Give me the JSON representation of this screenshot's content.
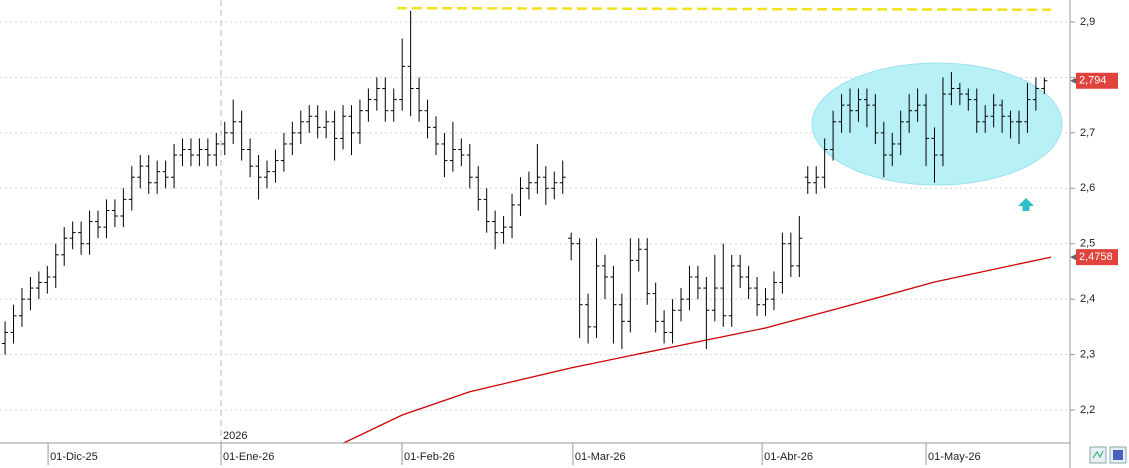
{
  "chart_data": {
    "type": "ohlc",
    "color": "#000000",
    "xlim": [
      -0.6,
      125.8
    ],
    "ylim": [
      2.1405,
      2.9397
    ],
    "yticks": [
      {
        "value": 2.2,
        "label": "2,2"
      },
      {
        "value": 2.3,
        "label": "2,3"
      },
      {
        "value": 2.4,
        "label": "2,4"
      },
      {
        "value": 2.5,
        "label": "2,5"
      },
      {
        "value": 2.6,
        "label": "2,6"
      },
      {
        "value": 2.7,
        "label": "2,7"
      },
      {
        "value": 2.8,
        "label": "2,8"
      },
      {
        "value": 2.9,
        "label": "2,9"
      }
    ],
    "xticks": [
      {
        "value": 5.09,
        "label": "01-Dic-25"
      },
      {
        "value": 25.56,
        "label": "01-Ene-26"
      },
      {
        "value": 46.98,
        "label": "01-Feb-26"
      },
      {
        "value": 67.2,
        "label": "01-Mar-26"
      },
      {
        "value": 89.6,
        "label": "01-Abr-26"
      },
      {
        "value": 109.0,
        "label": "01-May-26"
      }
    ],
    "year_marker": {
      "value": 25.56,
      "label": "2026"
    },
    "grid": true,
    "values": [
      [
        2.32,
        2.36,
        2.3,
        2.34
      ],
      [
        2.34,
        2.39,
        2.32,
        2.37
      ],
      [
        2.37,
        2.42,
        2.35,
        2.4
      ],
      [
        2.4,
        2.44,
        2.38,
        2.42
      ],
      [
        2.42,
        2.45,
        2.4,
        2.43
      ],
      [
        2.43,
        2.46,
        2.41,
        2.44
      ],
      [
        2.44,
        2.5,
        2.42,
        2.48
      ],
      [
        2.48,
        2.53,
        2.46,
        2.51
      ],
      [
        2.51,
        2.54,
        2.49,
        2.52
      ],
      [
        2.52,
        2.54,
        2.48,
        2.5
      ],
      [
        2.5,
        2.56,
        2.48,
        2.54
      ],
      [
        2.54,
        2.56,
        2.51,
        2.53
      ],
      [
        2.53,
        2.58,
        2.51,
        2.56
      ],
      [
        2.56,
        2.58,
        2.53,
        2.55
      ],
      [
        2.55,
        2.6,
        2.53,
        2.58
      ],
      [
        2.58,
        2.64,
        2.56,
        2.62
      ],
      [
        2.62,
        2.66,
        2.6,
        2.64
      ],
      [
        2.64,
        2.66,
        2.59,
        2.61
      ],
      [
        2.61,
        2.65,
        2.59,
        2.63
      ],
      [
        2.63,
        2.65,
        2.6,
        2.62
      ],
      [
        2.62,
        2.68,
        2.6,
        2.66
      ],
      [
        2.66,
        2.69,
        2.64,
        2.67
      ],
      [
        2.67,
        2.69,
        2.64,
        2.66
      ],
      [
        2.66,
        2.69,
        2.64,
        2.67
      ],
      [
        2.67,
        2.69,
        2.64,
        2.66
      ],
      [
        2.66,
        2.7,
        2.64,
        2.68
      ],
      [
        2.68,
        2.72,
        2.66,
        2.7
      ],
      [
        2.7,
        2.76,
        2.68,
        2.72
      ],
      [
        2.72,
        2.74,
        2.65,
        2.67
      ],
      [
        2.67,
        2.69,
        2.62,
        2.64
      ],
      [
        2.64,
        2.66,
        2.58,
        2.62
      ],
      [
        2.62,
        2.65,
        2.6,
        2.63
      ],
      [
        2.63,
        2.67,
        2.61,
        2.65
      ],
      [
        2.65,
        2.7,
        2.63,
        2.68
      ],
      [
        2.68,
        2.72,
        2.66,
        2.7
      ],
      [
        2.7,
        2.74,
        2.68,
        2.72
      ],
      [
        2.72,
        2.75,
        2.7,
        2.73
      ],
      [
        2.73,
        2.75,
        2.69,
        2.71
      ],
      [
        2.71,
        2.74,
        2.69,
        2.72
      ],
      [
        2.72,
        2.74,
        2.65,
        2.69
      ],
      [
        2.69,
        2.75,
        2.67,
        2.73
      ],
      [
        2.73,
        2.75,
        2.66,
        2.7
      ],
      [
        2.7,
        2.76,
        2.68,
        2.74
      ],
      [
        2.74,
        2.78,
        2.72,
        2.76
      ],
      [
        2.76,
        2.8,
        2.74,
        2.78
      ],
      [
        2.78,
        2.8,
        2.72,
        2.74
      ],
      [
        2.74,
        2.78,
        2.72,
        2.76
      ],
      [
        2.76,
        2.87,
        2.74,
        2.82
      ],
      [
        2.82,
        2.92,
        2.73,
        2.78
      ],
      [
        2.78,
        2.8,
        2.72,
        2.74
      ],
      [
        2.74,
        2.76,
        2.69,
        2.71
      ],
      [
        2.71,
        2.73,
        2.66,
        2.68
      ],
      [
        2.68,
        2.7,
        2.62,
        2.65
      ],
      [
        2.65,
        2.72,
        2.63,
        2.67
      ],
      [
        2.67,
        2.69,
        2.64,
        2.66
      ],
      [
        2.66,
        2.68,
        2.6,
        2.62
      ],
      [
        2.62,
        2.64,
        2.56,
        2.58
      ],
      [
        2.58,
        2.6,
        2.52,
        2.54
      ],
      [
        2.54,
        2.56,
        2.49,
        2.52
      ],
      [
        2.52,
        2.55,
        2.5,
        2.53
      ],
      [
        2.53,
        2.59,
        2.51,
        2.57
      ],
      [
        2.57,
        2.62,
        2.55,
        2.6
      ],
      [
        2.6,
        2.63,
        2.58,
        2.61
      ],
      [
        2.61,
        2.68,
        2.59,
        2.62
      ],
      [
        2.62,
        2.64,
        2.57,
        2.6
      ],
      [
        2.6,
        2.63,
        2.58,
        2.61
      ],
      [
        2.61,
        2.65,
        2.59,
        2.62
      ],
      [
        2.51,
        2.52,
        2.47,
        2.5
      ],
      [
        2.5,
        2.51,
        2.33,
        2.39
      ],
      [
        2.39,
        2.41,
        2.32,
        2.35
      ],
      [
        2.35,
        2.51,
        2.33,
        2.46
      ],
      [
        2.46,
        2.48,
        2.4,
        2.44
      ],
      [
        2.44,
        2.46,
        2.32,
        2.39
      ],
      [
        2.39,
        2.41,
        2.31,
        2.36
      ],
      [
        2.36,
        2.51,
        2.34,
        2.47
      ],
      [
        2.47,
        2.51,
        2.45,
        2.49
      ],
      [
        2.49,
        2.51,
        2.39,
        2.41
      ],
      [
        2.41,
        2.43,
        2.34,
        2.36
      ],
      [
        2.36,
        2.38,
        2.32,
        2.34
      ],
      [
        2.34,
        2.4,
        2.32,
        2.38
      ],
      [
        2.38,
        2.42,
        2.36,
        2.4
      ],
      [
        2.4,
        2.46,
        2.38,
        2.44
      ],
      [
        2.44,
        2.46,
        2.4,
        2.42
      ],
      [
        2.42,
        2.44,
        2.31,
        2.38
      ],
      [
        2.38,
        2.48,
        2.36,
        2.42
      ],
      [
        2.42,
        2.5,
        2.35,
        2.37
      ],
      [
        2.37,
        2.48,
        2.35,
        2.46
      ],
      [
        2.46,
        2.48,
        2.42,
        2.44
      ],
      [
        2.44,
        2.46,
        2.4,
        2.42
      ],
      [
        2.42,
        2.44,
        2.37,
        2.39
      ],
      [
        2.39,
        2.42,
        2.37,
        2.4
      ],
      [
        2.4,
        2.45,
        2.38,
        2.43
      ],
      [
        2.43,
        2.52,
        2.41,
        2.5
      ],
      [
        2.5,
        2.52,
        2.44,
        2.46
      ],
      [
        2.46,
        2.55,
        2.44,
        2.51
      ],
      [
        2.62,
        2.64,
        2.59,
        2.61
      ],
      [
        2.61,
        2.64,
        2.59,
        2.62
      ],
      [
        2.62,
        2.69,
        2.6,
        2.67
      ],
      [
        2.67,
        2.74,
        2.65,
        2.72
      ],
      [
        2.72,
        2.77,
        2.7,
        2.75
      ],
      [
        2.75,
        2.78,
        2.7,
        2.74
      ],
      [
        2.74,
        2.78,
        2.72,
        2.76
      ],
      [
        2.76,
        2.78,
        2.71,
        2.75
      ],
      [
        2.75,
        2.77,
        2.68,
        2.7
      ],
      [
        2.7,
        2.72,
        2.62,
        2.66
      ],
      [
        2.66,
        2.7,
        2.64,
        2.68
      ],
      [
        2.68,
        2.74,
        2.66,
        2.72
      ],
      [
        2.72,
        2.77,
        2.7,
        2.74
      ],
      [
        2.74,
        2.78,
        2.72,
        2.75
      ],
      [
        2.75,
        2.77,
        2.64,
        2.69
      ],
      [
        2.69,
        2.71,
        2.61,
        2.66
      ],
      [
        2.66,
        2.8,
        2.64,
        2.77
      ],
      [
        2.77,
        2.81,
        2.75,
        2.78
      ],
      [
        2.78,
        2.79,
        2.75,
        2.77
      ],
      [
        2.77,
        2.78,
        2.74,
        2.76
      ],
      [
        2.76,
        2.78,
        2.7,
        2.72
      ],
      [
        2.72,
        2.75,
        2.7,
        2.73
      ],
      [
        2.73,
        2.77,
        2.71,
        2.75
      ],
      [
        2.75,
        2.76,
        2.7,
        2.73
      ],
      [
        2.73,
        2.74,
        2.69,
        2.72
      ],
      [
        2.72,
        2.74,
        2.68,
        2.72
      ],
      [
        2.72,
        2.79,
        2.7,
        2.76
      ],
      [
        2.76,
        2.8,
        2.74,
        2.78
      ],
      [
        2.78,
        2.8,
        2.77,
        2.794
      ]
    ],
    "moving_average": {
      "color": "#cc0000",
      "x": [
        40,
        47,
        55,
        67,
        80,
        90,
        100,
        110,
        123.8
      ],
      "values": [
        2.14,
        2.191,
        2.233,
        2.276,
        2.317,
        2.348,
        2.389,
        2.431,
        2.4758
      ]
    },
    "resistance": {
      "color": "#f2e21a",
      "x": [
        46.4,
        123.8
      ],
      "values": [
        2.925,
        2.922
      ]
    },
    "price_labels": [
      {
        "value": 2.794,
        "label": "2,794",
        "color": "#e0423c"
      },
      {
        "value": 2.4758,
        "label": "2,4758",
        "color": "#e0423c"
      }
    ]
  }
}
